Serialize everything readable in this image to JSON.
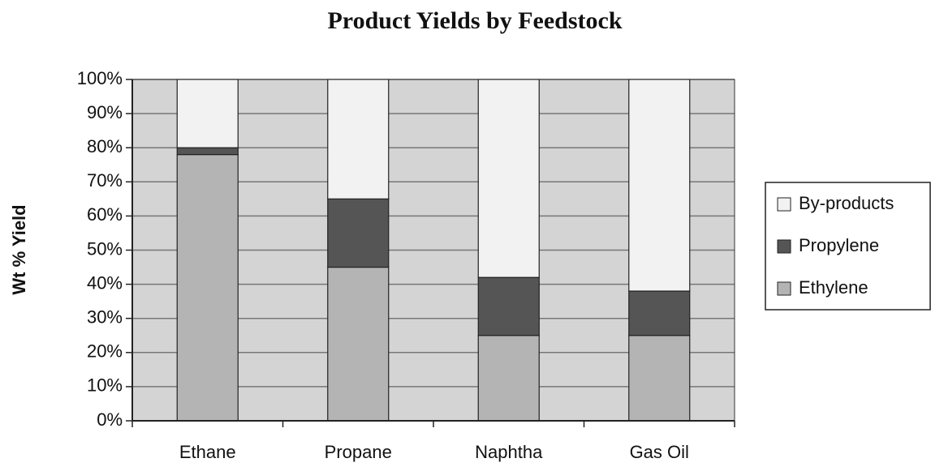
{
  "chart_data": {
    "type": "stacked_bar",
    "title": "Product Yields by Feedstock",
    "y_label": "Wt % Yield",
    "categories": [
      "Ethane",
      "Propane",
      "Naphtha",
      "Gas Oil"
    ],
    "series": [
      {
        "name": "Ethylene",
        "color": "#b4b4b4",
        "values": [
          78,
          45,
          25,
          25
        ]
      },
      {
        "name": "Propylene",
        "color": "#555555",
        "values": [
          2,
          20,
          17,
          13
        ]
      },
      {
        "name": "By-products",
        "color": "#f2f2f2",
        "values": [
          20,
          35,
          58,
          62
        ]
      }
    ],
    "ylim": [
      0,
      100
    ],
    "yticks": [
      {
        "value": 0,
        "label": "0%"
      },
      {
        "value": 10,
        "label": "10%"
      },
      {
        "value": 20,
        "label": "20%"
      },
      {
        "value": 30,
        "label": "30%"
      },
      {
        "value": 40,
        "label": "40%"
      },
      {
        "value": 50,
        "label": "50%"
      },
      {
        "value": 60,
        "label": "60%"
      },
      {
        "value": 70,
        "label": "70%"
      },
      {
        "value": 80,
        "label": "80%"
      },
      {
        "value": 90,
        "label": "90%"
      },
      {
        "value": 100,
        "label": "100%"
      }
    ],
    "grid": true,
    "legend": "right"
  }
}
